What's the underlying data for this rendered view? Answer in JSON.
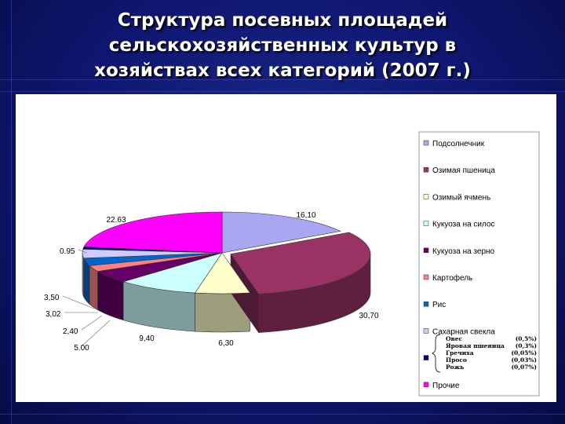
{
  "slide": {
    "title_lines": [
      "Структура посевных площадей",
      "сельскохозяйственных культур в",
      "хозяйствах всех категорий (2007 г.)"
    ]
  },
  "chart_data": {
    "type": "pie",
    "style": "3d-exploded",
    "legend_placement": "right",
    "slices": [
      {
        "label": "Подсолнечник",
        "value": 16.1,
        "display": "16,10",
        "color": "#a9a6f2"
      },
      {
        "label": "Озимая пшеница",
        "value": 30.7,
        "display": "30,70",
        "color": "#993366"
      },
      {
        "label": "Озимый ячмень",
        "value": 6.3,
        "display": "6,30",
        "color": "#ffffcc"
      },
      {
        "label": "Кукуоза на силос",
        "value": 9.4,
        "display": "9,40",
        "color": "#ccffff"
      },
      {
        "label": "Кукуоза на зерно",
        "value": 5.0,
        "display": "5.00",
        "color": "#660066"
      },
      {
        "label": "Картофель",
        "value": 2.4,
        "display": "2,40",
        "color": "#ff8080"
      },
      {
        "label": "Рис",
        "value": 3.02,
        "display": "3,02",
        "color": "#0066cc"
      },
      {
        "label": "Сахарная свекла",
        "value": 3.5,
        "display": "3,50",
        "color": "#ccccff"
      },
      {
        "label": "",
        "value": 0.95,
        "display": "0.95",
        "color": "#000080"
      },
      {
        "label": "Прочие",
        "value": 22.63,
        "display": "22.63",
        "color": "#ff00ff"
      }
    ],
    "legend_note": [
      {
        "name": "Овес",
        "value": "(0,5%)"
      },
      {
        "name": "Яровая пшеница",
        "value": "(0,3%)"
      },
      {
        "name": "Гречиха",
        "value": "(0,05%)"
      },
      {
        "name": "Просо",
        "value": "(0,03%)"
      },
      {
        "name": "Рожь",
        "value": "(0,07%)"
      }
    ]
  }
}
